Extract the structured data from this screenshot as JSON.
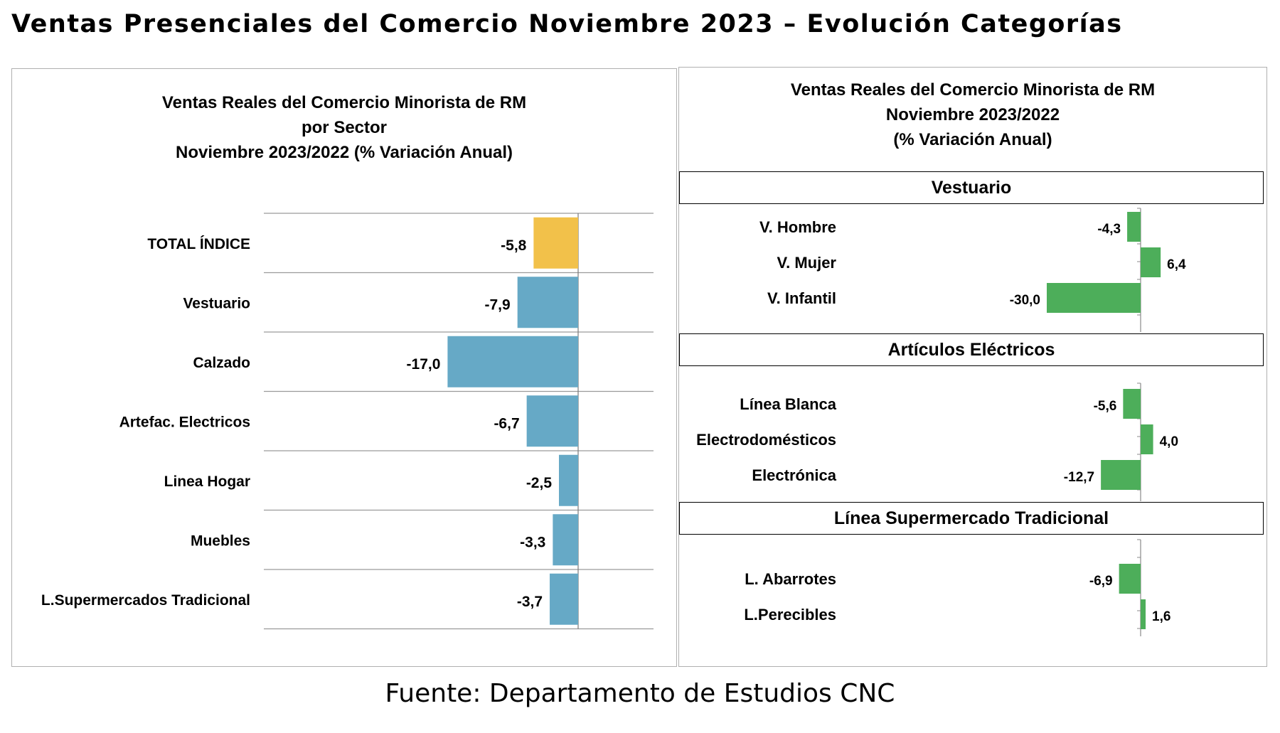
{
  "title": "Ventas Presenciales del Comercio Noviembre 2023 – Evolución Categorías",
  "source": "Fuente: Departamento de Estudios CNC",
  "colors": {
    "total_bar": "#F2C14A",
    "sector_bar": "#66A9C6",
    "category_bar": "#4DAE5A"
  },
  "chart_data": [
    {
      "type": "bar",
      "orientation": "horizontal",
      "title": [
        "Ventas Reales del Comercio Minorista de RM",
        "por Sector",
        "Noviembre 2023/2022 (% Variación Anual)"
      ],
      "categories": [
        "TOTAL ÍNDICE",
        "Vestuario",
        "Calzado",
        "Artefac. Electricos",
        "Linea Hogar",
        "Muebles",
        "L.Supermercados Tradicional"
      ],
      "values": [
        -5.8,
        -7.9,
        -17.0,
        -6.7,
        -2.5,
        -3.3,
        -3.7
      ],
      "data_labels": [
        "-5,8",
        "-7,9",
        "-17,0",
        "-6,7",
        "-2,5",
        "-3,3",
        "-3,7"
      ],
      "highlight_index": 0,
      "xlim": [
        -40,
        10
      ],
      "grid": "horizontal separators"
    },
    {
      "type": "bar",
      "orientation": "horizontal",
      "title": [
        "Ventas Reales del Comercio Minorista de RM",
        "Noviembre 2023/2022",
        "(% Variación Anual)"
      ],
      "xlim": [
        -30,
        10
      ],
      "groups": [
        {
          "name": "Vestuario",
          "categories": [
            "V. Hombre",
            "V. Mujer",
            "V. Infantil"
          ],
          "values": [
            -4.3,
            6.4,
            -30.0
          ],
          "data_labels": [
            "-4,3",
            "6,4",
            "-30,0"
          ]
        },
        {
          "name": "Artículos Eléctricos",
          "categories": [
            "Línea Blanca",
            "Electrodomésticos",
            "Electrónica"
          ],
          "values": [
            -5.6,
            4.0,
            -12.7
          ],
          "data_labels": [
            "-5,6",
            "4,0",
            "-12,7"
          ]
        },
        {
          "name": "Línea Supermercado Tradicional",
          "categories": [
            "L. Abarrotes",
            "L.Perecibles"
          ],
          "values": [
            -6.9,
            1.6
          ],
          "data_labels": [
            "-6,9",
            "1,6"
          ]
        }
      ]
    }
  ]
}
